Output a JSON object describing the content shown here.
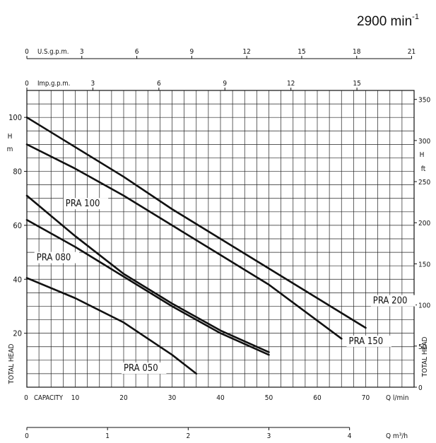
{
  "speed_label": {
    "value": "2900 min",
    "superscript": "-1"
  },
  "chart_data": {
    "type": "line",
    "x_unit_label": "Q l/min",
    "capacity_label": "CAPACITY",
    "xlim": [
      0,
      80
    ],
    "x_ticks": [
      0,
      10,
      20,
      30,
      40,
      50,
      60,
      70
    ],
    "left_axis": {
      "label_top": "H",
      "label_unit": "m",
      "side_label": "TOTAL HEAD",
      "ylim": [
        0,
        110
      ],
      "ticks": [
        0,
        20,
        40,
        60,
        80,
        100
      ]
    },
    "right_axis": {
      "label_top": "H",
      "label_unit": "ft",
      "side_label": "TOTAL HEAD",
      "ticks": [
        0,
        50,
        100,
        150,
        200,
        250,
        300,
        350
      ],
      "m_per_unit": 0.3048
    },
    "usgpm_axis": {
      "label": "U.S.g.p.m.",
      "ticks": [
        0,
        3,
        6,
        9,
        12,
        15,
        18,
        21
      ],
      "lpm_per_unit": 3.7854
    },
    "impgpm_axis": {
      "label": "Imp.g.p.m.",
      "ticks": [
        0,
        3,
        6,
        9,
        12,
        15
      ],
      "lpm_per_unit": 4.546
    },
    "m3h_axis": {
      "label": "Q m³/h",
      "ticks": [
        0,
        1,
        2,
        3,
        4
      ],
      "lpm_per_unit": 16.667
    },
    "grid": true,
    "series": [
      {
        "name": "PRA 200",
        "label_at": [
          71.5,
          31
        ],
        "points": [
          [
            0,
            100
          ],
          [
            10,
            89
          ],
          [
            20,
            78
          ],
          [
            30,
            66
          ],
          [
            40,
            55
          ],
          [
            50,
            44
          ],
          [
            60,
            33
          ],
          [
            70,
            22
          ]
        ]
      },
      {
        "name": "PRA 150",
        "label_at": [
          66.5,
          16
        ],
        "points": [
          [
            0,
            90
          ],
          [
            10,
            81
          ],
          [
            20,
            71
          ],
          [
            30,
            60
          ],
          [
            40,
            49
          ],
          [
            50,
            38
          ],
          [
            65,
            18
          ]
        ]
      },
      {
        "name": "PRA 100",
        "label_at": [
          8,
          67
        ],
        "points": [
          [
            0,
            71
          ],
          [
            10,
            56
          ],
          [
            20,
            42
          ],
          [
            30,
            31
          ],
          [
            40,
            21
          ],
          [
            50,
            13
          ]
        ]
      },
      {
        "name": "PRA 080",
        "label_at": [
          2,
          47
        ],
        "points": [
          [
            0,
            62
          ],
          [
            10,
            52
          ],
          [
            20,
            41
          ],
          [
            30,
            30
          ],
          [
            40,
            20
          ],
          [
            50,
            12
          ]
        ]
      },
      {
        "name": "PRA 050",
        "label_at": [
          20,
          6
        ],
        "points": [
          [
            0,
            40.5
          ],
          [
            10,
            33
          ],
          [
            20,
            24
          ],
          [
            30,
            12
          ],
          [
            35,
            5
          ]
        ]
      }
    ]
  }
}
